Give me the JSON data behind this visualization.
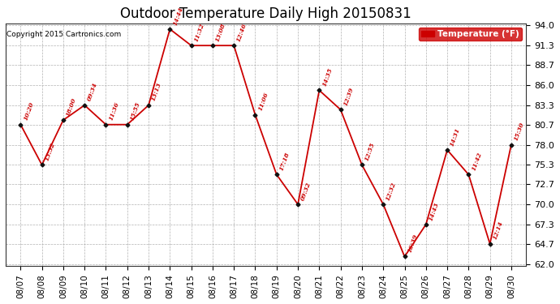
{
  "title": "Outdoor Temperature Daily High 20150831",
  "copyright": "Copyright 2015 Cartronics.com",
  "legend_label": "Temperature (°F)",
  "dates": [
    "08/07",
    "08/08",
    "08/09",
    "08/10",
    "08/11",
    "08/12",
    "08/13",
    "08/14",
    "08/15",
    "08/16",
    "08/17",
    "08/18",
    "08/19",
    "08/20",
    "08/21",
    "08/22",
    "08/23",
    "08/24",
    "08/25",
    "08/26",
    "08/27",
    "08/28",
    "08/29",
    "08/30"
  ],
  "temps": [
    80.7,
    75.3,
    81.3,
    83.3,
    80.7,
    80.7,
    83.3,
    93.5,
    91.3,
    91.3,
    91.3,
    82.0,
    74.0,
    70.0,
    85.3,
    82.7,
    75.3,
    70.0,
    63.0,
    67.3,
    77.3,
    74.0,
    64.7,
    78.0
  ],
  "times": [
    "10:20",
    "13:32",
    "18:00",
    "09:34",
    "11:36",
    "15:55",
    "13:13",
    "14:44",
    "11:32",
    "13:08",
    "12:46",
    "11:06",
    "17:18",
    "09:32",
    "14:35",
    "12:39",
    "12:55",
    "12:32",
    "16:39",
    "14:43",
    "14:31",
    "11:42",
    "12:14",
    "15:30"
  ],
  "line_color": "#cc0000",
  "marker_color": "#111111",
  "bg_color": "#ffffff",
  "grid_color": "#aaaaaa",
  "title_fontsize": 12,
  "ylim": [
    62.0,
    94.0
  ],
  "yticks": [
    62.0,
    64.7,
    67.3,
    70.0,
    72.7,
    75.3,
    78.0,
    80.7,
    83.3,
    86.0,
    88.7,
    91.3,
    94.0
  ]
}
